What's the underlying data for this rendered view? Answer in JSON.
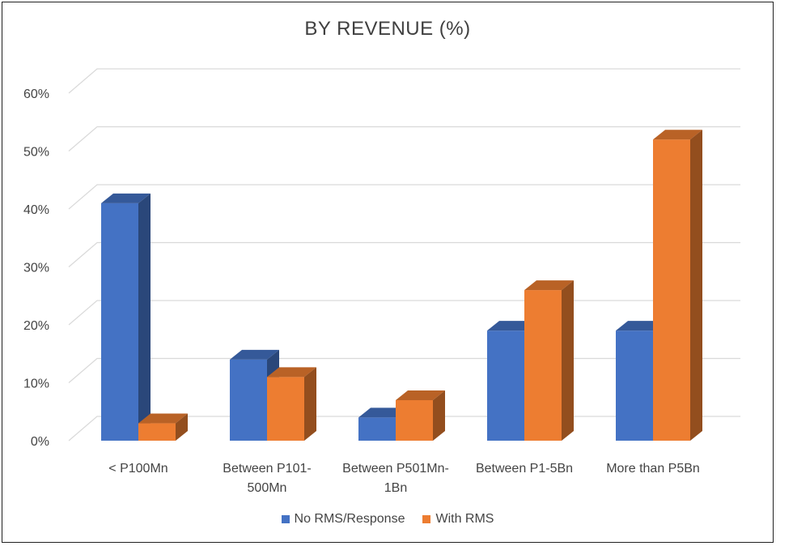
{
  "chart_data": {
    "type": "bar",
    "title": "BY REVENUE (%)",
    "categories": [
      [
        "< P100Mn"
      ],
      [
        "Between P101-",
        "500Mn"
      ],
      [
        "Between P501Mn-",
        "1Bn"
      ],
      [
        "Between P1-5Bn"
      ],
      [
        "More than P5Bn"
      ]
    ],
    "series": [
      {
        "name": "No RMS/Response",
        "color": "#4472C4",
        "values": [
          41,
          14,
          4,
          19,
          19
        ]
      },
      {
        "name": "With RMS",
        "color": "#ED7D31",
        "values": [
          3,
          11,
          7,
          26,
          52
        ]
      }
    ],
    "ylim": [
      0,
      60
    ],
    "yticks": [
      "0%",
      "10%",
      "20%",
      "30%",
      "40%",
      "50%",
      "60%"
    ],
    "legend_position": "bottom",
    "grid": true
  }
}
